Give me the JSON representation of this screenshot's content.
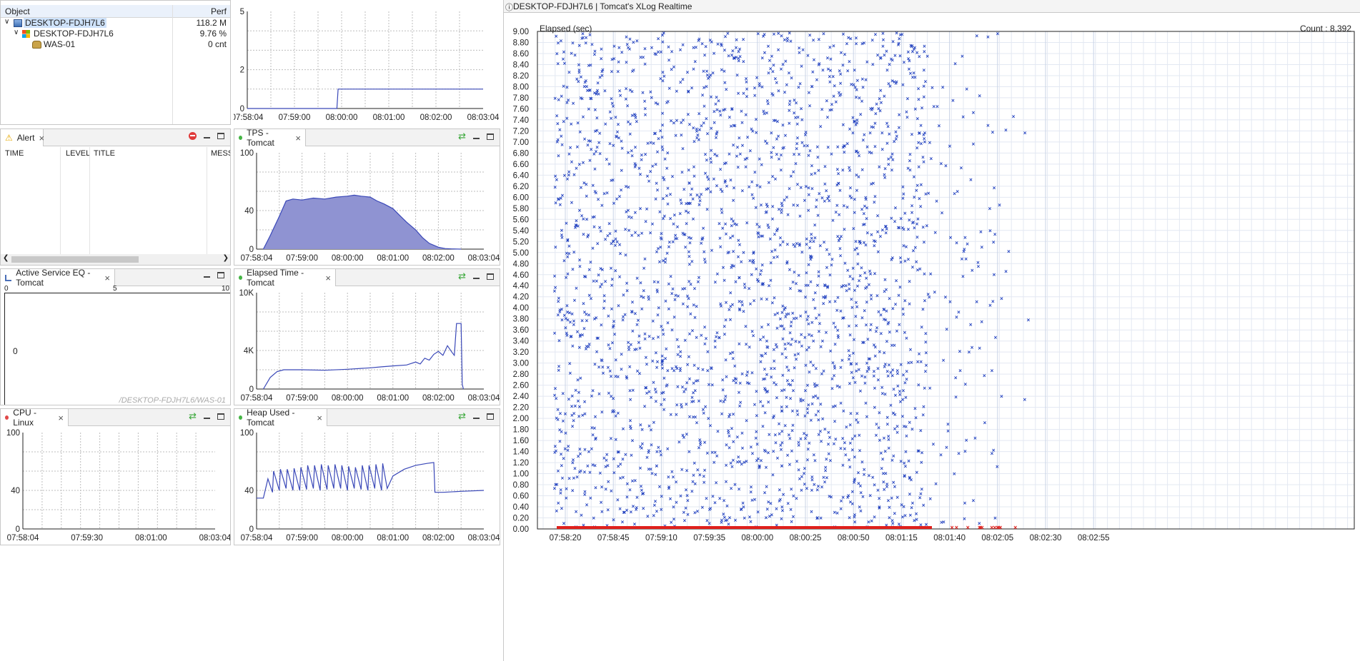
{
  "object_panel": {
    "col_object": "Object",
    "col_perf": "Perf",
    "rows": [
      {
        "name": "DESKTOP-FDJH7L6",
        "perf": "118.2 M"
      },
      {
        "name": "DESKTOP-FDJH7L6",
        "perf": "9.76 %"
      },
      {
        "name": "WAS-01",
        "perf": "0 cnt"
      }
    ]
  },
  "alert_panel": {
    "title": "Alert",
    "columns": [
      "TIME",
      "LEVEL",
      "TITLE",
      "MESS"
    ]
  },
  "active_service": {
    "title": "Active Service EQ - Tomcat",
    "scale": [
      "0",
      "5",
      "10"
    ],
    "value": "0",
    "watermark": "/DESKTOP-FDJH7L6/WAS-01"
  },
  "cpu_panel": {
    "title": "CPU - Linux"
  },
  "tps_panel": {
    "title": "TPS - Tomcat"
  },
  "elapsed_panel": {
    "title": "Elapsed Time - Tomcat"
  },
  "heap_panel": {
    "title": "Heap Used - Tomcat"
  },
  "xlog_panel": {
    "title": "DESKTOP-FDJH7L6 | Tomcat's XLog Realtime",
    "ylabel": "Elapsed (sec)",
    "count": "Count : 8,392"
  },
  "colors": {
    "series": "#3a48b8",
    "fill": "#8f93d2",
    "error": "#e0201c",
    "xlog": "#1f3fbf"
  },
  "chart_data": [
    {
      "id": "top-mini",
      "type": "line",
      "x_ticks": [
        "07:58:04",
        "07:59:00",
        "08:00:00",
        "08:01:00",
        "08:02:00",
        "08:03:04"
      ],
      "y_ticks": [
        "0",
        "2",
        "5"
      ],
      "ylim": [
        0,
        5
      ],
      "x": [
        0,
        0.38,
        0.385,
        1
      ],
      "values": [
        0,
        0,
        1,
        1
      ]
    },
    {
      "id": "tps",
      "type": "area",
      "title": "TPS - Tomcat",
      "x_ticks": [
        "07:58:04",
        "07:59:00",
        "08:00:00",
        "08:01:00",
        "08:02:00",
        "08:03:04"
      ],
      "y_ticks": [
        "0",
        "40",
        "100"
      ],
      "ylim": [
        0,
        100
      ],
      "x": [
        0.03,
        0.06,
        0.1,
        0.13,
        0.16,
        0.2,
        0.25,
        0.3,
        0.35,
        0.4,
        0.43,
        0.46,
        0.5,
        0.53,
        0.56,
        0.6,
        0.63,
        0.66,
        0.7,
        0.73,
        0.76,
        0.8,
        0.83,
        0.86,
        0.9
      ],
      "values": [
        0,
        14,
        34,
        50,
        52,
        51,
        53,
        52,
        54,
        55,
        56,
        55,
        54,
        50,
        47,
        42,
        35,
        28,
        20,
        12,
        6,
        2,
        0.6,
        0.2,
        0
      ]
    },
    {
      "id": "elapsed",
      "type": "line",
      "title": "Elapsed Time - Tomcat",
      "x_ticks": [
        "07:58:04",
        "07:59:00",
        "08:00:00",
        "08:01:00",
        "08:02:00",
        "08:03:04"
      ],
      "y_ticks": [
        "0",
        "4K",
        "10K"
      ],
      "ylim": [
        0,
        10000
      ],
      "x": [
        0.03,
        0.06,
        0.09,
        0.12,
        0.2,
        0.3,
        0.4,
        0.5,
        0.55,
        0.6,
        0.66,
        0.7,
        0.72,
        0.74,
        0.76,
        0.78,
        0.8,
        0.82,
        0.84,
        0.86,
        0.87,
        0.88,
        0.89,
        0.9,
        0.905,
        0.91
      ],
      "values": [
        0,
        1200,
        1800,
        2000,
        2000,
        1950,
        2050,
        2200,
        2300,
        2400,
        2500,
        2800,
        2600,
        3200,
        3000,
        3600,
        3900,
        3500,
        4500,
        3800,
        3500,
        6800,
        6800,
        6800,
        500,
        0
      ]
    },
    {
      "id": "cpu",
      "type": "line",
      "title": "CPU - Linux",
      "x_ticks": [
        "07:58:04",
        "07:59:30",
        "08:01:00",
        "08:03:04"
      ],
      "y_ticks": [
        "0",
        "40",
        "100"
      ],
      "ylim": [
        0,
        100
      ],
      "x": [],
      "values": []
    },
    {
      "id": "heap",
      "type": "line",
      "title": "Heap Used - Tomcat",
      "x_ticks": [
        "07:58:04",
        "07:59:00",
        "08:00:00",
        "08:01:00",
        "08:02:00",
        "08:03:04"
      ],
      "y_ticks": [
        "0",
        "40",
        "100"
      ],
      "ylim": [
        0,
        100
      ],
      "x": [
        0.0,
        0.03,
        0.05,
        0.07,
        0.075,
        0.1,
        0.105,
        0.13,
        0.135,
        0.16,
        0.165,
        0.19,
        0.195,
        0.22,
        0.225,
        0.25,
        0.255,
        0.28,
        0.285,
        0.31,
        0.315,
        0.34,
        0.345,
        0.37,
        0.375,
        0.4,
        0.405,
        0.43,
        0.435,
        0.46,
        0.465,
        0.49,
        0.495,
        0.52,
        0.525,
        0.55,
        0.555,
        0.575,
        0.6,
        0.65,
        0.7,
        0.75,
        0.78,
        0.785,
        0.82,
        0.9,
        1.0
      ],
      "values": [
        32,
        32,
        52,
        38,
        60,
        40,
        62,
        42,
        62,
        40,
        63,
        40,
        64,
        41,
        66,
        42,
        66,
        40,
        67,
        41,
        66,
        42,
        67,
        42,
        66,
        40,
        65,
        42,
        64,
        41,
        66,
        40,
        66,
        42,
        67,
        40,
        68,
        42,
        55,
        62,
        66,
        68,
        69,
        38,
        38,
        39,
        40
      ]
    },
    {
      "id": "xlog",
      "type": "scatter",
      "title": "DESKTOP-FDJH7L6 | Tomcat's XLog Realtime",
      "ylabel": "Elapsed (sec)",
      "y_ticks": [
        "0.00",
        "0.20",
        "0.40",
        "0.60",
        "0.80",
        "1.00",
        "1.20",
        "1.40",
        "1.60",
        "1.80",
        "2.00",
        "2.20",
        "2.40",
        "2.60",
        "2.80",
        "3.00",
        "3.20",
        "3.40",
        "3.60",
        "3.80",
        "4.00",
        "4.20",
        "4.40",
        "4.60",
        "4.80",
        "5.00",
        "5.20",
        "5.40",
        "5.60",
        "5.80",
        "6.00",
        "6.20",
        "6.40",
        "6.60",
        "6.80",
        "7.00",
        "7.20",
        "7.40",
        "7.60",
        "7.80",
        "8.00",
        "8.20",
        "8.40",
        "8.60",
        "8.80",
        "9.00"
      ],
      "x_ticks": [
        "07:58:20",
        "07:58:45",
        "07:59:10",
        "07:59:35",
        "08:00:00",
        "08:00:25",
        "08:00:50",
        "08:01:15",
        "08:01:40",
        "08:02:05",
        "08:02:30",
        "08:02:55"
      ],
      "ylim": [
        0,
        9
      ],
      "count": 8392
    }
  ]
}
